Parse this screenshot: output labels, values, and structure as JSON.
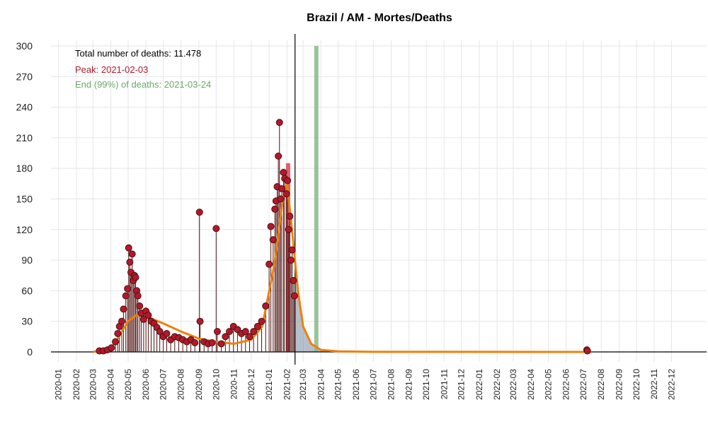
{
  "chart_data": {
    "type": "line",
    "title": "Brazil / AM - Mortes/Deaths",
    "xlabel": "",
    "ylabel": "",
    "ylim": [
      0,
      300
    ],
    "y_ticks": [
      0,
      30,
      60,
      90,
      120,
      150,
      180,
      210,
      240,
      270,
      300
    ],
    "x_range": [
      "2019-12-19",
      "2023-01-31"
    ],
    "x_ticks": [
      "2020-01",
      "2020-02",
      "2020-03",
      "2020-04",
      "2020-05",
      "2020-06",
      "2020-07",
      "2020-08",
      "2020-09",
      "2020-10",
      "2020-11",
      "2020-12",
      "2021-01",
      "2021-02",
      "2021-03",
      "2021-04",
      "2021-05",
      "2021-06",
      "2021-07",
      "2021-08",
      "2021-09",
      "2021-10",
      "2021-11",
      "2021-12",
      "2022-01",
      "2022-02",
      "2022-03",
      "2022-04",
      "2022-05",
      "2022-06",
      "2022-07",
      "2022-08",
      "2022-09",
      "2022-10",
      "2022-11",
      "2022-12"
    ],
    "grid": true,
    "annotations": {
      "total": "Total number of deaths: 11.478",
      "peak": "Peak: 2021-02-03",
      "end": "End (99%) of deaths: 2021-03-24"
    },
    "vertical_line_date": "2021-02-15",
    "peak_bar": {
      "date": "2021-02-03",
      "value": 185
    },
    "end_bar": {
      "date": "2021-03-24",
      "value": 300
    },
    "colors": {
      "observed_points": "#b2182b",
      "observed_outline": "#4d0f0f",
      "fitted_line": "#f07f0a",
      "peak": "#d62c3c",
      "end": "#88b888",
      "projection_bars": "#9aa8b8",
      "annotation_total": "#000000",
      "annotation_peak": "#b2182b",
      "annotation_end": "#6aa86a"
    },
    "series": [
      {
        "name": "observed",
        "points": [
          [
            "2020-03-12",
            1
          ],
          [
            "2020-03-19",
            1
          ],
          [
            "2020-03-26",
            2
          ],
          [
            "2020-04-02",
            4
          ],
          [
            "2020-04-09",
            10
          ],
          [
            "2020-04-13",
            18
          ],
          [
            "2020-04-16",
            25
          ],
          [
            "2020-04-20",
            30
          ],
          [
            "2020-04-23",
            42
          ],
          [
            "2020-04-27",
            55
          ],
          [
            "2020-04-30",
            62
          ],
          [
            "2020-05-02",
            102
          ],
          [
            "2020-05-04",
            88
          ],
          [
            "2020-05-06",
            78
          ],
          [
            "2020-05-08",
            96
          ],
          [
            "2020-05-10",
            70
          ],
          [
            "2020-05-12",
            75
          ],
          [
            "2020-05-14",
            73
          ],
          [
            "2020-05-16",
            60
          ],
          [
            "2020-05-18",
            55
          ],
          [
            "2020-05-21",
            45
          ],
          [
            "2020-05-24",
            38
          ],
          [
            "2020-05-28",
            32
          ],
          [
            "2020-06-01",
            40
          ],
          [
            "2020-06-05",
            36
          ],
          [
            "2020-06-10",
            30
          ],
          [
            "2020-06-15",
            28
          ],
          [
            "2020-06-20",
            24
          ],
          [
            "2020-06-25",
            20
          ],
          [
            "2020-07-01",
            15
          ],
          [
            "2020-07-07",
            18
          ],
          [
            "2020-07-14",
            12
          ],
          [
            "2020-07-21",
            15
          ],
          [
            "2020-07-28",
            14
          ],
          [
            "2020-08-04",
            12
          ],
          [
            "2020-08-11",
            10
          ],
          [
            "2020-08-18",
            12
          ],
          [
            "2020-08-25",
            9
          ],
          [
            "2020-09-02",
            137
          ],
          [
            "2020-09-03",
            30
          ],
          [
            "2020-09-10",
            10
          ],
          [
            "2020-09-17",
            8
          ],
          [
            "2020-09-24",
            9
          ],
          [
            "2020-10-01",
            121
          ],
          [
            "2020-10-03",
            20
          ],
          [
            "2020-10-10",
            8
          ],
          [
            "2020-10-17",
            15
          ],
          [
            "2020-10-24",
            20
          ],
          [
            "2020-10-31",
            25
          ],
          [
            "2020-11-07",
            22
          ],
          [
            "2020-11-14",
            18
          ],
          [
            "2020-11-21",
            20
          ],
          [
            "2020-11-28",
            15
          ],
          [
            "2020-12-05",
            20
          ],
          [
            "2020-12-12",
            25
          ],
          [
            "2020-12-19",
            30
          ],
          [
            "2020-12-26",
            45
          ],
          [
            "2021-01-01",
            86
          ],
          [
            "2021-01-04",
            123
          ],
          [
            "2021-01-08",
            110
          ],
          [
            "2021-01-11",
            140
          ],
          [
            "2021-01-13",
            148
          ],
          [
            "2021-01-15",
            162
          ],
          [
            "2021-01-17",
            192
          ],
          [
            "2021-01-19",
            225
          ],
          [
            "2021-01-21",
            150
          ],
          [
            "2021-01-23",
            160
          ],
          [
            "2021-01-26",
            176
          ],
          [
            "2021-01-28",
            170
          ],
          [
            "2021-01-31",
            155
          ],
          [
            "2021-02-02",
            168
          ],
          [
            "2021-02-04",
            120
          ],
          [
            "2021-02-06",
            133
          ],
          [
            "2021-02-08",
            90
          ],
          [
            "2021-02-10",
            100
          ],
          [
            "2021-02-12",
            70
          ],
          [
            "2021-02-14",
            55
          ],
          [
            "2022-07-07",
            2
          ],
          [
            "2022-07-08",
            1
          ]
        ]
      },
      {
        "name": "fitted",
        "points": [
          [
            "2020-03-01",
            0
          ],
          [
            "2020-04-01",
            3
          ],
          [
            "2020-04-15",
            15
          ],
          [
            "2020-05-01",
            30
          ],
          [
            "2020-05-15",
            36
          ],
          [
            "2020-06-01",
            35
          ],
          [
            "2020-07-01",
            28
          ],
          [
            "2020-08-01",
            20
          ],
          [
            "2020-09-01",
            13
          ],
          [
            "2020-10-01",
            10
          ],
          [
            "2020-11-01",
            8
          ],
          [
            "2020-12-01",
            12
          ],
          [
            "2020-12-20",
            25
          ],
          [
            "2021-01-10",
            85
          ],
          [
            "2021-01-25",
            150
          ],
          [
            "2021-02-01",
            165
          ],
          [
            "2021-02-08",
            130
          ],
          [
            "2021-02-20",
            60
          ],
          [
            "2021-03-01",
            25
          ],
          [
            "2021-03-15",
            8
          ],
          [
            "2021-04-01",
            2
          ],
          [
            "2021-05-01",
            0.5
          ],
          [
            "2021-07-01",
            0.1
          ],
          [
            "2022-07-15",
            0
          ]
        ]
      }
    ]
  }
}
